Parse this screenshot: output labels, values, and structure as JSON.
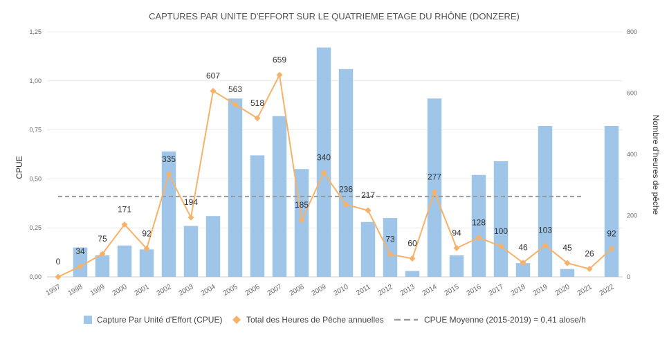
{
  "chart_data": {
    "type": "bar",
    "title": "CAPTURES PAR UNITE D'EFFORT SUR LE QUATRIEME ETAGE DU RHÔNE (DONZERE)",
    "ylabel": "CPUE",
    "y2label": "Nombre d'heures de pêche",
    "categories": [
      "1997",
      "1998",
      "1999",
      "2000",
      "2001",
      "2002",
      "2003",
      "2004",
      "2005",
      "2006",
      "2007",
      "2008",
      "2009",
      "2010",
      "2011",
      "2012",
      "2013",
      "2014",
      "2015",
      "2016",
      "2017",
      "2018",
      "2019",
      "2020",
      "2021",
      "2022"
    ],
    "ylim": [
      0,
      1.25
    ],
    "y_ticks": [
      "0,00",
      "0,25",
      "0,50",
      "0,75",
      "1,00",
      "1,25"
    ],
    "y2lim": [
      0,
      800
    ],
    "y2_ticks": [
      "0",
      "200",
      "400",
      "600",
      "800"
    ],
    "grid": true,
    "legend_position": "bottom",
    "series": [
      {
        "name": "Capture Par Unité d'Effort (CPUE)",
        "kind": "bar",
        "axis": "left",
        "color": "#9fc5e8",
        "values": [
          0,
          0.15,
          0.11,
          0.16,
          0.14,
          0.64,
          0.26,
          0.31,
          0.91,
          0.62,
          0.82,
          0.55,
          1.17,
          1.06,
          0.28,
          0.3,
          0.03,
          0.91,
          0.11,
          0.52,
          0.59,
          0.07,
          0.77,
          0.04,
          0,
          0.77
        ]
      },
      {
        "name": "Total des Heures de Pêche annuelles",
        "kind": "line",
        "axis": "right",
        "color": "#f6b26b",
        "values": [
          0,
          34,
          75,
          171,
          92,
          335,
          194,
          607,
          563,
          518,
          659,
          185,
          340,
          236,
          217,
          73,
          60,
          277,
          94,
          128,
          100,
          46,
          103,
          45,
          26,
          92
        ],
        "labels": [
          "0",
          "34",
          "75",
          "171",
          "92",
          "335",
          "194",
          "607",
          "563",
          "518",
          "659",
          "185",
          "340",
          "236",
          "217",
          "73",
          "60",
          "277",
          "94",
          "128",
          "100",
          "46",
          "103",
          "45",
          "26",
          "92"
        ]
      },
      {
        "name": "CPUE Moyenne (2015-2019) = 0,41 alose/h",
        "kind": "reference-line",
        "axis": "left",
        "color": "#999999",
        "value": 0.41
      }
    ]
  }
}
